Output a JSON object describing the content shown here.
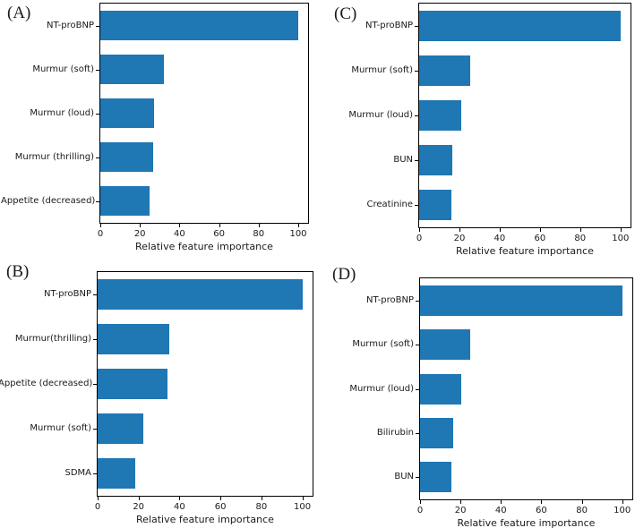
{
  "figure": {
    "background": "#ffffff",
    "bar_color": "#1f77b4",
    "axis_color": "#000000",
    "text_color": "#1a1a1a"
  },
  "chart_data": [
    {
      "type": "bar",
      "panel_label": "(A)",
      "orientation": "horizontal",
      "categories": [
        "NT-proBNP",
        "Murmur (soft)",
        "Murmur (loud)",
        "Murmur (thrilling)",
        "Appetite (decreased)"
      ],
      "values": [
        100,
        32,
        27,
        26.5,
        25
      ],
      "xlabel": "Relative feature importance",
      "xticks": [
        0,
        20,
        40,
        60,
        80,
        100
      ],
      "xlim": [
        0,
        105
      ],
      "grid": false,
      "legend": null
    },
    {
      "type": "bar",
      "panel_label": "(C)",
      "orientation": "horizontal",
      "categories": [
        "NT-proBNP",
        "Murmur (soft)",
        "Murmur (loud)",
        "BUN",
        "Creatinine"
      ],
      "values": [
        100,
        25.5,
        21,
        16.5,
        16
      ],
      "xlabel": "Relative feature importance",
      "xticks": [
        0,
        20,
        40,
        60,
        80,
        100
      ],
      "xlim": [
        0,
        105
      ],
      "grid": false,
      "legend": null
    },
    {
      "type": "bar",
      "panel_label": "(B)",
      "orientation": "horizontal",
      "categories": [
        "NT-proBNP",
        "Murmur(thrilling)",
        "Appetite (decreased)",
        "Murmur (soft)",
        "SDMA"
      ],
      "values": [
        100,
        35,
        34,
        22.5,
        18.5
      ],
      "xlabel": "Relative feature importance",
      "xticks": [
        0,
        20,
        40,
        60,
        80,
        100
      ],
      "xlim": [
        0,
        105
      ],
      "grid": false,
      "legend": null
    },
    {
      "type": "bar",
      "panel_label": "(D)",
      "orientation": "horizontal",
      "categories": [
        "NT-proBNP",
        "Murmur (soft)",
        "Murmur (loud)",
        "Bilirubin",
        "BUN"
      ],
      "values": [
        100,
        25,
        20.5,
        16.5,
        15.5
      ],
      "xlabel": "Relative feature importance",
      "xticks": [
        0,
        20,
        40,
        60,
        80,
        100
      ],
      "xlim": [
        0,
        105
      ],
      "grid": false,
      "legend": null
    }
  ]
}
